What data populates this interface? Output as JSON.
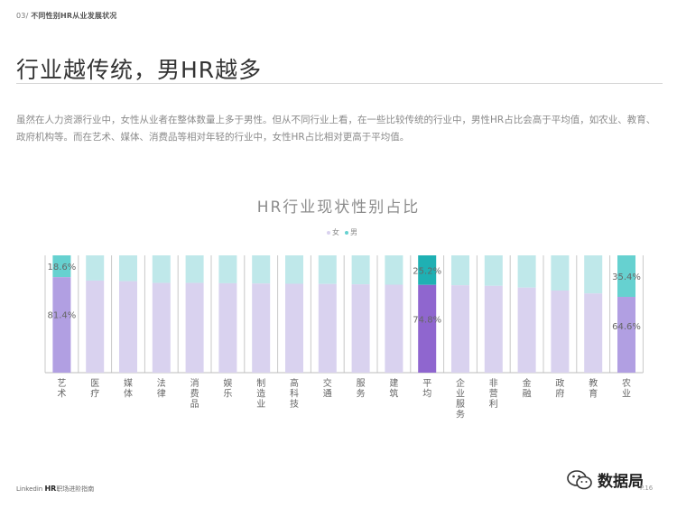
{
  "header": {
    "section_num": "03/",
    "section_title": "不同性别HR从业发展状况"
  },
  "headline": "行业越传统，男HR越多",
  "intro": "虽然在人力资源行业中，女性从业者在整体数量上多于男性。但从不同行业上看，在一些比较传统的行业中，男性HR占比会高于平均值，如农业、教育、政府机构等。而在艺术、媒体、消费品等相对年轻的行业中，女性HR占比相对更高于平均值。",
  "chart_data": {
    "type": "bar",
    "stacked": true,
    "percent": true,
    "title": "HR行业现状性别占比",
    "categories": [
      "艺术",
      "医疗",
      "媒体",
      "法律",
      "消费品",
      "娱乐",
      "制造业",
      "高科技",
      "交通",
      "服务",
      "建筑",
      "平均",
      "企业服务",
      "非营利",
      "金融",
      "政府",
      "教育",
      "农业"
    ],
    "series": [
      {
        "name": "女",
        "values": [
          81.4,
          78.5,
          78.0,
          76.5,
          76.5,
          76.2,
          76.0,
          75.8,
          75.6,
          75.3,
          75.0,
          74.8,
          74.5,
          74.0,
          72.5,
          70.0,
          67.5,
          64.6
        ]
      },
      {
        "name": "男",
        "values": [
          18.6,
          21.5,
          22.0,
          23.5,
          23.5,
          23.8,
          24.0,
          24.2,
          24.4,
          24.7,
          25.0,
          25.2,
          25.5,
          26.0,
          27.5,
          30.0,
          32.5,
          35.4
        ]
      }
    ],
    "data_labels": [
      {
        "category": "艺术",
        "series": "女",
        "text": "81.4%"
      },
      {
        "category": "艺术",
        "series": "男",
        "text": "18.6%"
      },
      {
        "category": "平均",
        "series": "女",
        "text": "74.8%"
      },
      {
        "category": "平均",
        "series": "男",
        "text": "25.2%"
      },
      {
        "category": "农业",
        "series": "女",
        "text": "64.6%"
      },
      {
        "category": "农业",
        "series": "男",
        "text": "35.4%"
      }
    ],
    "ylim": [
      0,
      100
    ],
    "legend_position": "top-center",
    "grid": false
  },
  "legend": {
    "female_label": "女",
    "male_label": "男"
  },
  "colors": {
    "female": "#d9d2ef",
    "male": "#bfe8ea",
    "female_highlight": "#b19fe2",
    "male_highlight": "#66d1d0",
    "avg_female": "#8f66cf",
    "avg_male": "#1fb0b3"
  },
  "footer": {
    "brand_prefix": "Linkedin ",
    "brand_bold": "HR",
    "brand_suffix": "职场进阶指南",
    "page": "P.16"
  },
  "brand": {
    "name": "数据局"
  }
}
